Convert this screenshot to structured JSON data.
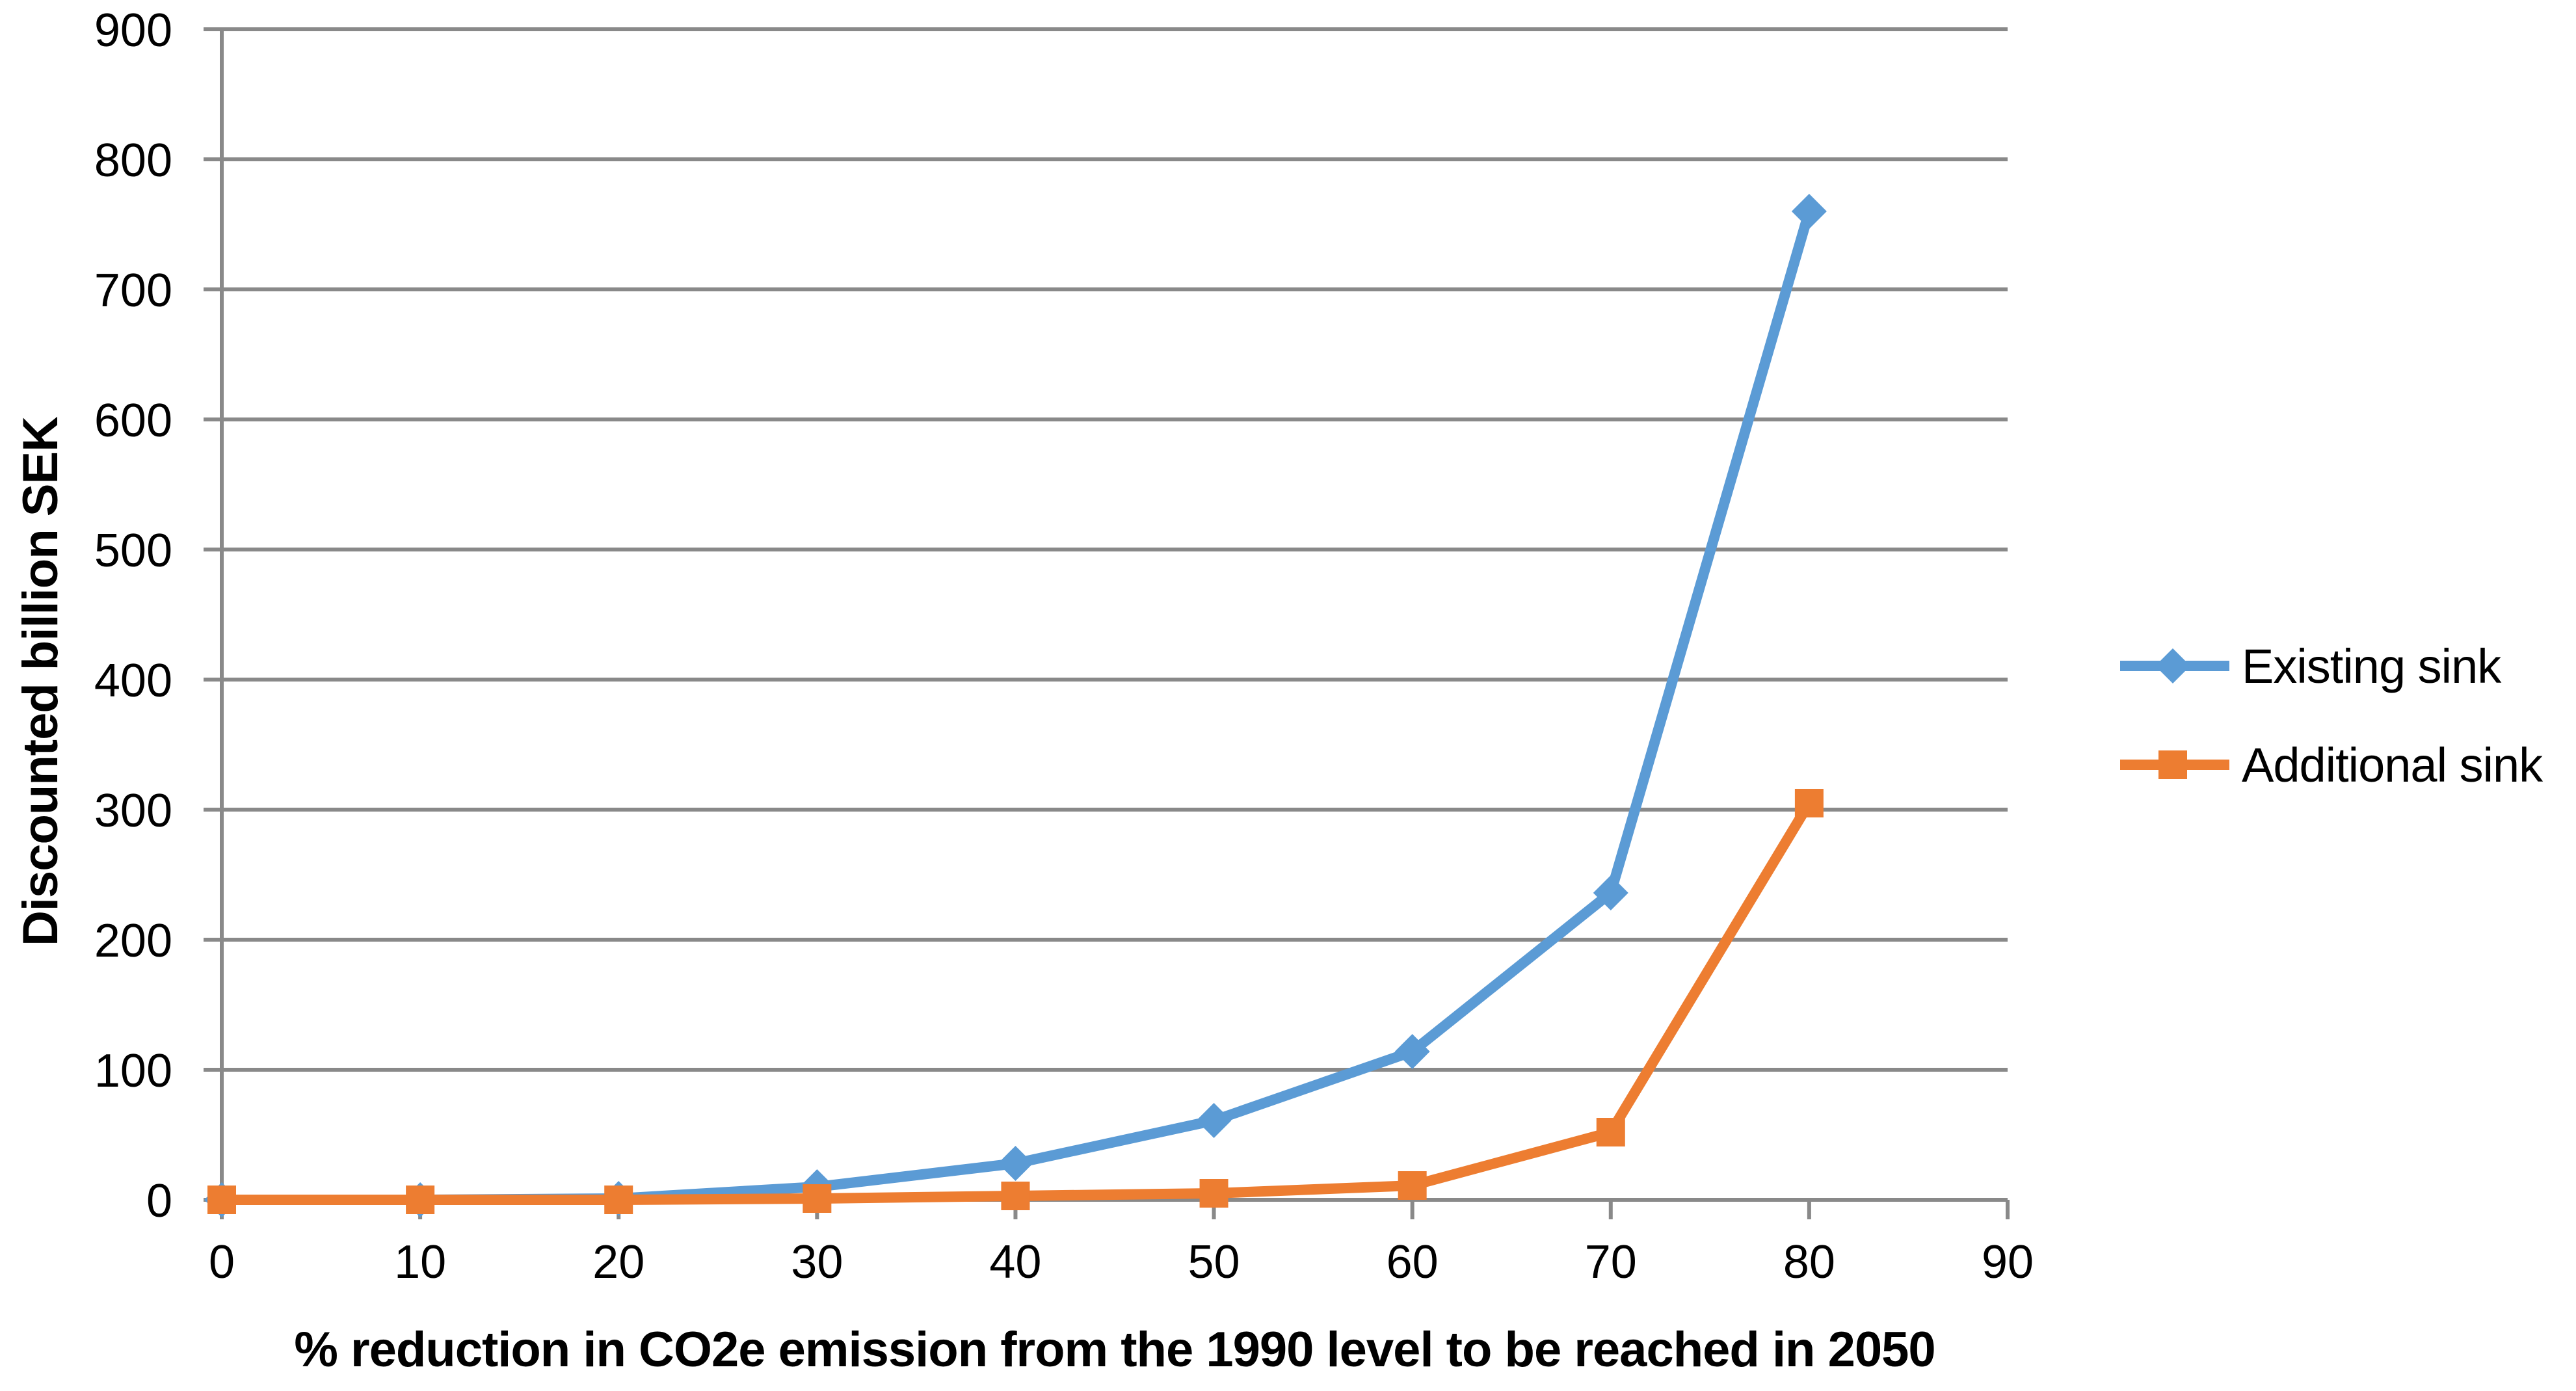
{
  "chart_data": {
    "type": "line",
    "title": "",
    "xlabel": "% reduction in CO2e emission from the 1990 level to be reached in 2050",
    "ylabel": "Discounted billion SEK",
    "x": [
      0,
      10,
      20,
      30,
      40,
      50,
      60,
      70,
      80
    ],
    "series": [
      {
        "name": "Existing sink",
        "marker": "diamond",
        "color": "#5B9BD5",
        "values": [
          0,
          0,
          1,
          10,
          28,
          61,
          114,
          236,
          760
        ]
      },
      {
        "name": "Additional sink",
        "marker": "square",
        "color": "#ED7D31",
        "values": [
          0,
          0,
          0,
          1,
          3,
          5,
          11,
          52,
          305
        ]
      }
    ],
    "xlim": [
      0,
      90
    ],
    "ylim": [
      0,
      900
    ],
    "x_ticks": [
      0,
      10,
      20,
      30,
      40,
      50,
      60,
      70,
      80,
      90
    ],
    "y_ticks": [
      0,
      100,
      200,
      300,
      400,
      500,
      600,
      700,
      800,
      900
    ],
    "grid": "horizontal-major",
    "grid_color": "#898989",
    "axis_color": "#898989",
    "text_color": "#000000",
    "legend_position": "right"
  }
}
